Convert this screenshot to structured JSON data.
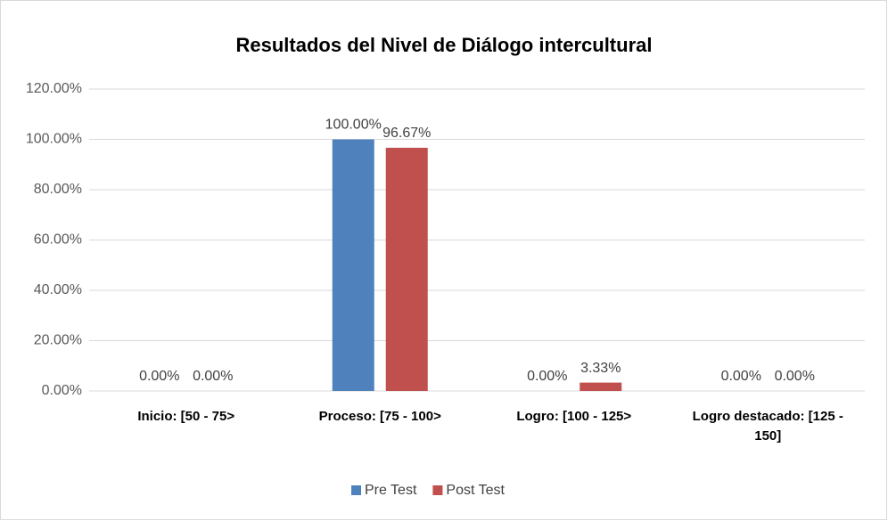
{
  "chart_data": {
    "type": "bar",
    "title": "Resultados del Nivel de Diálogo intercultural",
    "categories": [
      "Inicio: [50 - 75>",
      "Proceso: [75 - 100>",
      "Logro: [100 - 125>",
      "Logro destacado: [125 - 150]"
    ],
    "series": [
      {
        "name": "Pre Test",
        "color": "#4f81bd",
        "values": [
          0,
          100,
          0,
          0
        ],
        "value_labels": [
          "0.00%",
          "100.00%",
          "0.00%",
          "0.00%"
        ]
      },
      {
        "name": "Post Test",
        "color": "#c0504d",
        "values": [
          0,
          96.67,
          3.33,
          0
        ],
        "value_labels": [
          "0.00%",
          "96.67%",
          "3.33%",
          "0.00%"
        ]
      }
    ],
    "ylim": [
      0,
      120
    ],
    "yticks": [
      {
        "value": 0,
        "label": "0.00%"
      },
      {
        "value": 20,
        "label": "20.00%"
      },
      {
        "value": 40,
        "label": "40.00%"
      },
      {
        "value": 60,
        "label": "60.00%"
      },
      {
        "value": 80,
        "label": "80.00%"
      },
      {
        "value": 100,
        "label": "100.00%"
      },
      {
        "value": 120,
        "label": "120.00%"
      }
    ],
    "grid": true,
    "legend": "bottom"
  }
}
